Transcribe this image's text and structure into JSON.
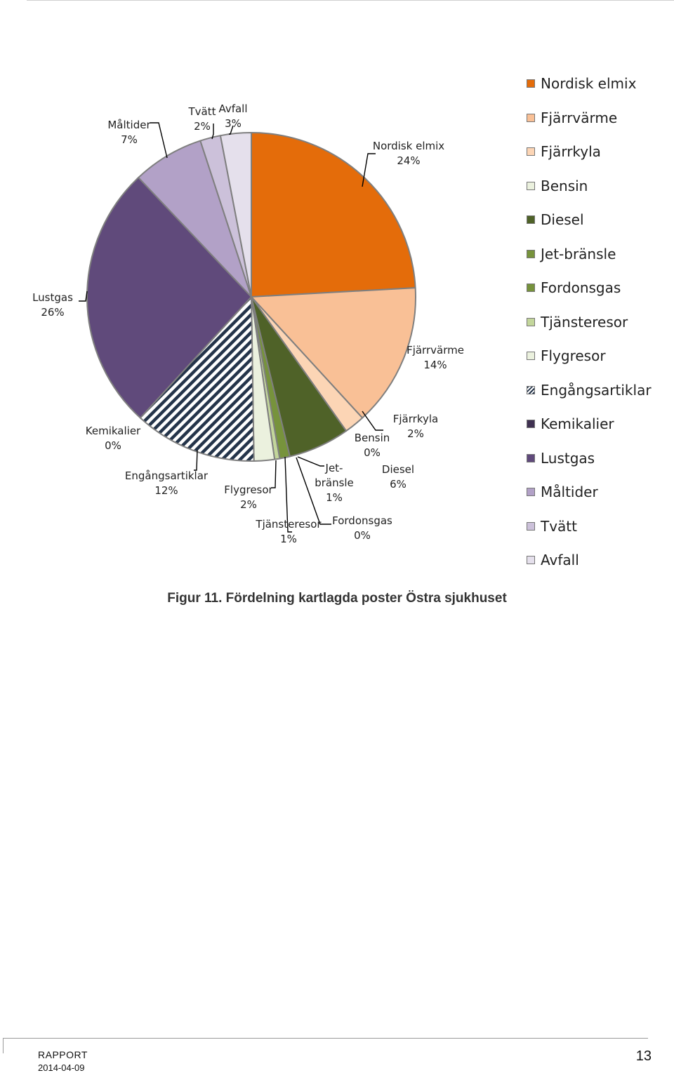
{
  "chart_data": {
    "type": "pie",
    "title": "",
    "start_angle_deg": 0,
    "direction": "clockwise",
    "slices": [
      {
        "name": "Nordisk elmix",
        "value": 24,
        "label": "24%",
        "color": "#E46C0A"
      },
      {
        "name": "Fjärrvärme",
        "value": 14,
        "label": "14%",
        "color": "#F9C096"
      },
      {
        "name": "Fjärrkyla",
        "value": 2,
        "label": "2%",
        "color": "#FCD5B5"
      },
      {
        "name": "Bensin",
        "value": 0,
        "label": "0%",
        "color": "#EBF1DE"
      },
      {
        "name": "Diesel",
        "value": 6,
        "label": "6%",
        "color": "#4F6228"
      },
      {
        "name": "Jet-bränsle",
        "value": 1,
        "label": "1%",
        "color": "#77933C"
      },
      {
        "name": "Fordonsgas",
        "value": 0,
        "label": "0%",
        "color": "#76923C"
      },
      {
        "name": "Tjänsteresor",
        "value": 0.5,
        "label": "1%",
        "color": "#C3D69B"
      },
      {
        "name": "Flygresor",
        "value": 2,
        "label": "2%",
        "color": "#EBF1DE"
      },
      {
        "name": "Engångsartiklar",
        "value": 12,
        "label": "12%",
        "color": "#24344A",
        "pattern": "diagonal-stripes"
      },
      {
        "name": "Kemikalier",
        "value": 0,
        "label": "0%",
        "color": "#3F3151"
      },
      {
        "name": "Lustgas",
        "value": 26,
        "label": "26%",
        "color": "#604A7B"
      },
      {
        "name": "Måltider",
        "value": 7,
        "label": "7%",
        "color": "#B2A1C7"
      },
      {
        "name": "Tvätt",
        "value": 2,
        "label": "2%",
        "color": "#CCC1DA"
      },
      {
        "name": "Avfall",
        "value": 3,
        "label": "3%",
        "color": "#E5E0EC"
      }
    ],
    "legend_position": "right",
    "slice_border_color": "#7F7F7F"
  },
  "caption": "Figur 11. Fördelning kartlagda poster Östra sjukhuset",
  "footer": {
    "report": "RAPPORT",
    "date": "2014-04-09",
    "page": "13"
  }
}
